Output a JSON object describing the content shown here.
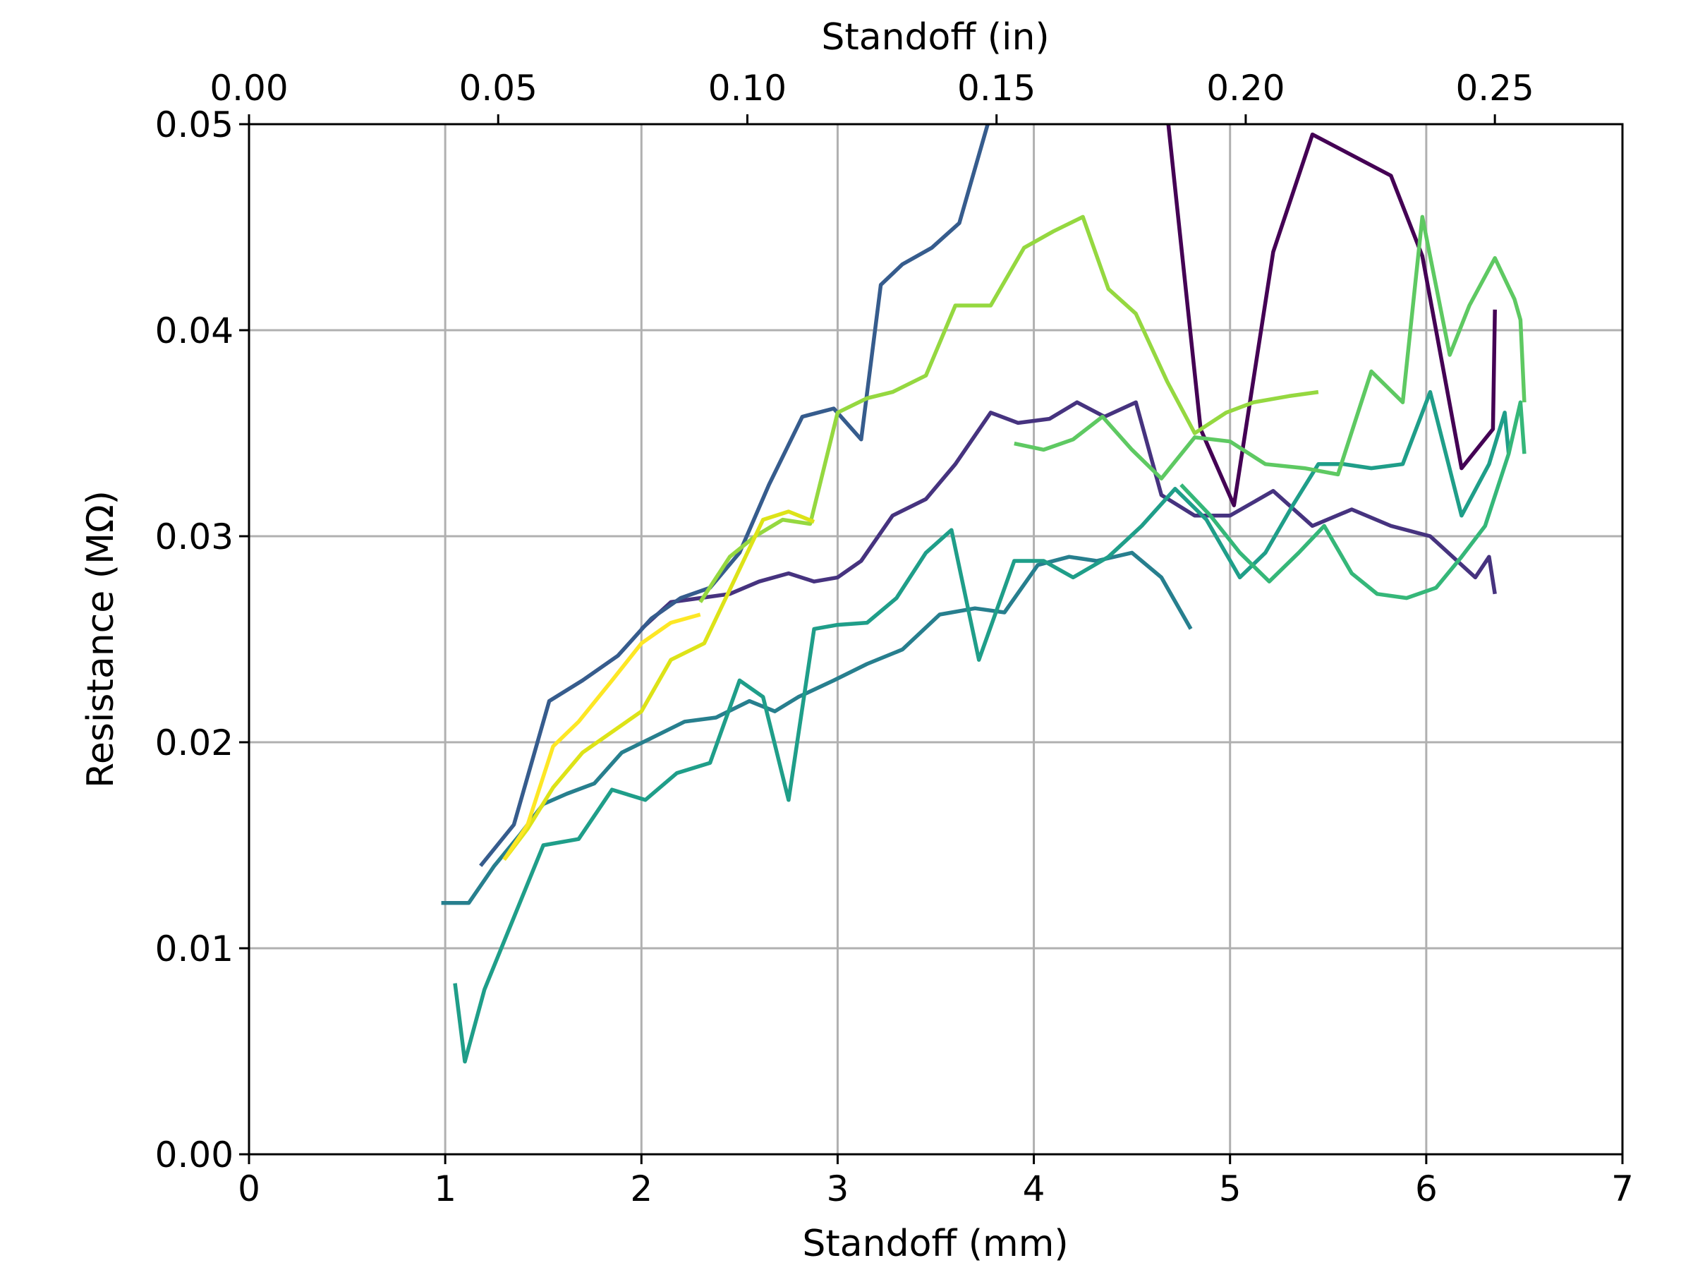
{
  "chart_data": {
    "type": "line",
    "xlabel": "Standoff (mm)",
    "ylabel": "Resistance (MΩ)",
    "secondary_xlabel": "Standoff (in)",
    "xlim": [
      0,
      7
    ],
    "ylim": [
      0,
      0.05
    ],
    "secondary_xlim": [
      0,
      0.2756
    ],
    "x_ticks": [
      "0",
      "1",
      "2",
      "3",
      "4",
      "5",
      "6",
      "7"
    ],
    "y_ticks": [
      "0.00",
      "0.01",
      "0.02",
      "0.03",
      "0.04",
      "0.05"
    ],
    "secondary_x_ticks": [
      "0.00",
      "0.05",
      "0.10",
      "0.15",
      "0.20",
      "0.25"
    ],
    "grid": true,
    "series": [
      {
        "color": "#440154",
        "x": [
          4.68,
          4.85,
          5.02,
          5.22,
          5.42,
          5.62,
          5.82,
          5.98,
          6.18,
          6.34,
          6.35
        ],
        "y": [
          0.0505,
          0.0352,
          0.0315,
          0.0438,
          0.0495,
          0.0485,
          0.0475,
          0.0436,
          0.0333,
          0.0352,
          0.041
        ]
      },
      {
        "color": "#46337f",
        "x": [
          2.0,
          2.15,
          2.3,
          2.45,
          2.6,
          2.75,
          2.88,
          3.0,
          3.12,
          3.28,
          3.45,
          3.6,
          3.78,
          3.92,
          4.08,
          4.22,
          4.36,
          4.52,
          4.65,
          4.82,
          5.0,
          5.22,
          5.42,
          5.62,
          5.82,
          6.02,
          6.25,
          6.32,
          6.35
        ],
        "y": [
          0.0255,
          0.0268,
          0.027,
          0.0272,
          0.0278,
          0.0282,
          0.0278,
          0.028,
          0.0288,
          0.031,
          0.0318,
          0.0335,
          0.036,
          0.0355,
          0.0357,
          0.0365,
          0.0358,
          0.0365,
          0.032,
          0.031,
          0.031,
          0.0322,
          0.0305,
          0.0313,
          0.0305,
          0.03,
          0.028,
          0.029,
          0.0272
        ]
      },
      {
        "color": "#365c8d",
        "x": [
          1.18,
          1.35,
          1.53,
          1.7,
          1.88,
          2.05,
          2.2,
          2.35,
          2.5,
          2.65,
          2.82,
          2.98,
          3.12,
          3.22,
          3.33,
          3.48,
          3.62,
          3.78,
          3.92,
          4.0
        ],
        "y": [
          0.014,
          0.016,
          0.022,
          0.023,
          0.0242,
          0.026,
          0.027,
          0.0275,
          0.0292,
          0.0325,
          0.0358,
          0.0362,
          0.0347,
          0.0422,
          0.0432,
          0.044,
          0.0452,
          0.0505,
          0.054,
          0.055
        ]
      },
      {
        "color": "#277f8e",
        "x": [
          0.98,
          1.12,
          1.25,
          1.38,
          1.5,
          1.62,
          1.76,
          1.9,
          2.05,
          2.22,
          2.38,
          2.55,
          2.68,
          2.8,
          2.98,
          3.15,
          3.33,
          3.52,
          3.7,
          3.85,
          4.02,
          4.18,
          4.32,
          4.5,
          4.65,
          4.8
        ],
        "y": [
          0.0122,
          0.0122,
          0.014,
          0.0155,
          0.017,
          0.0175,
          0.018,
          0.0195,
          0.0202,
          0.021,
          0.0212,
          0.022,
          0.0215,
          0.0222,
          0.023,
          0.0238,
          0.0245,
          0.0262,
          0.0265,
          0.0263,
          0.0286,
          0.029,
          0.0288,
          0.0292,
          0.028,
          0.0255
        ]
      },
      {
        "color": "#1f9e89",
        "x": [
          1.05,
          1.1,
          1.2,
          1.35,
          1.5,
          1.68,
          1.85,
          2.02,
          2.18,
          2.35,
          2.5,
          2.62,
          2.75,
          2.88,
          3.0,
          3.15,
          3.3,
          3.45,
          3.58,
          3.72,
          3.9,
          4.05,
          4.2,
          4.38,
          4.55,
          4.72,
          4.88,
          5.05,
          5.18,
          5.32,
          5.45,
          5.58,
          5.72,
          5.88,
          6.02,
          6.18,
          6.32,
          6.4,
          6.42
        ],
        "y": [
          0.0083,
          0.0045,
          0.008,
          0.0115,
          0.015,
          0.0153,
          0.0177,
          0.0172,
          0.0185,
          0.019,
          0.023,
          0.0222,
          0.0172,
          0.0255,
          0.0257,
          0.0258,
          0.027,
          0.0292,
          0.0303,
          0.024,
          0.0288,
          0.0288,
          0.028,
          0.029,
          0.0305,
          0.0323,
          0.0308,
          0.028,
          0.0292,
          0.0315,
          0.0335,
          0.0335,
          0.0333,
          0.0335,
          0.037,
          0.031,
          0.0335,
          0.036,
          0.034
        ]
      },
      {
        "color": "#35b779",
        "x": [
          4.75,
          4.9,
          5.05,
          5.2,
          5.35,
          5.48,
          5.62,
          5.75,
          5.9,
          6.05,
          6.18,
          6.3,
          6.42,
          6.48,
          6.5
        ],
        "y": [
          0.0325,
          0.031,
          0.0292,
          0.0278,
          0.0292,
          0.0305,
          0.0282,
          0.0272,
          0.027,
          0.0275,
          0.029,
          0.0305,
          0.034,
          0.0365,
          0.034
        ]
      },
      {
        "color": "#5ec962",
        "x": [
          3.9,
          4.05,
          4.2,
          4.35,
          4.5,
          4.65,
          4.82,
          5.0,
          5.18,
          5.38,
          5.55,
          5.72,
          5.88,
          5.98,
          6.12,
          6.22,
          6.35,
          6.45,
          6.48,
          6.5
        ],
        "y": [
          0.0345,
          0.0342,
          0.0347,
          0.0358,
          0.0342,
          0.0328,
          0.0348,
          0.0346,
          0.0335,
          0.0333,
          0.033,
          0.038,
          0.0365,
          0.0455,
          0.0388,
          0.0412,
          0.0435,
          0.0415,
          0.0405,
          0.0365
        ]
      },
      {
        "color": "#95d840",
        "x": [
          2.3,
          2.45,
          2.58,
          2.72,
          2.86,
          3.0,
          3.15,
          3.28,
          3.45,
          3.6,
          3.78,
          3.95,
          4.1,
          4.25,
          4.38,
          4.52,
          4.68,
          4.82,
          4.98,
          5.12,
          5.3,
          5.45
        ],
        "y": [
          0.0268,
          0.029,
          0.03,
          0.0308,
          0.0306,
          0.036,
          0.0367,
          0.037,
          0.0378,
          0.0412,
          0.0412,
          0.044,
          0.0448,
          0.0455,
          0.042,
          0.0408,
          0.0375,
          0.035,
          0.036,
          0.0365,
          0.0368,
          0.037
        ]
      },
      {
        "color": "#dde318",
        "x": [
          1.3,
          1.42,
          1.55,
          1.7,
          1.85,
          2.0,
          2.15,
          2.32,
          2.48,
          2.62,
          2.75,
          2.88
        ],
        "y": [
          0.0143,
          0.0158,
          0.0178,
          0.0195,
          0.0205,
          0.0215,
          0.024,
          0.0248,
          0.028,
          0.0308,
          0.0312,
          0.0307
        ]
      },
      {
        "color": "#fde725",
        "x": [
          1.3,
          1.42,
          1.55,
          1.68,
          1.85,
          2.0,
          2.15,
          2.3
        ],
        "y": [
          0.0143,
          0.016,
          0.0198,
          0.021,
          0.023,
          0.0248,
          0.0258,
          0.0262
        ]
      }
    ]
  }
}
